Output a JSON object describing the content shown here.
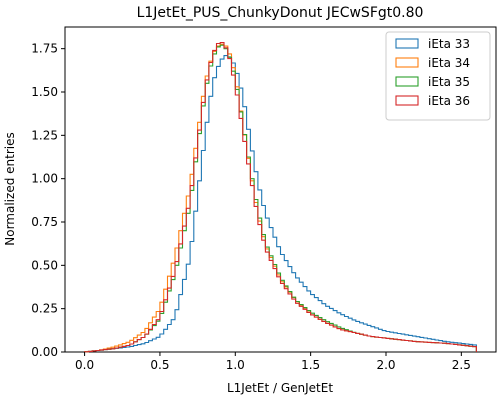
{
  "chart_data": {
    "type": "line",
    "style": "step-histogram",
    "title": "L1JetEt_PUS_ChunkyDonut JECwSFgt0.80",
    "xlabel": "L1JetEt / GenJetEt",
    "ylabel": "Normalized entries",
    "xlim": [
      -0.13,
      2.73
    ],
    "ylim": [
      0,
      1.875
    ],
    "xticks": [
      0.0,
      0.5,
      1.0,
      1.5,
      2.0,
      2.5
    ],
    "xtick_labels": [
      "0.0",
      "0.5",
      "1.0",
      "1.5",
      "2.0",
      "2.5"
    ],
    "yticks": [
      0.0,
      0.25,
      0.5,
      0.75,
      1.0,
      1.25,
      1.5,
      1.75
    ],
    "ytick_labels": [
      "0.00",
      "0.25",
      "0.50",
      "0.75",
      "1.00",
      "1.25",
      "1.50",
      "1.75"
    ],
    "grid": false,
    "legend_position": "top-right",
    "x": [
      0.0,
      0.1,
      0.2,
      0.3,
      0.4,
      0.5,
      0.6,
      0.7,
      0.75,
      0.8,
      0.85,
      0.9,
      0.95,
      1.0,
      1.05,
      1.1,
      1.15,
      1.2,
      1.3,
      1.4,
      1.5,
      1.6,
      1.7,
      1.8,
      1.9,
      2.0,
      2.2,
      2.4,
      2.6
    ],
    "series": [
      {
        "name": "iEta 33",
        "color": "#1f77b4",
        "values": [
          0.0,
          0.01,
          0.02,
          0.03,
          0.05,
          0.09,
          0.2,
          0.55,
          0.9,
          1.25,
          1.55,
          1.68,
          1.72,
          1.65,
          1.48,
          1.22,
          0.98,
          0.8,
          0.58,
          0.44,
          0.34,
          0.27,
          0.22,
          0.18,
          0.15,
          0.12,
          0.09,
          0.06,
          0.04
        ]
      },
      {
        "name": "iEta 34",
        "color": "#ff7f0e",
        "values": [
          0.0,
          0.01,
          0.03,
          0.06,
          0.12,
          0.25,
          0.55,
          0.95,
          1.25,
          1.55,
          1.72,
          1.78,
          1.76,
          1.6,
          1.32,
          1.05,
          0.8,
          0.62,
          0.42,
          0.3,
          0.22,
          0.17,
          0.13,
          0.11,
          0.09,
          0.08,
          0.06,
          0.05,
          0.03
        ]
      },
      {
        "name": "iEta 35",
        "color": "#2ca02c",
        "values": [
          0.0,
          0.01,
          0.02,
          0.04,
          0.09,
          0.19,
          0.45,
          0.85,
          1.18,
          1.5,
          1.7,
          1.78,
          1.74,
          1.58,
          1.32,
          1.06,
          0.82,
          0.63,
          0.43,
          0.3,
          0.23,
          0.18,
          0.14,
          0.11,
          0.09,
          0.08,
          0.06,
          0.05,
          0.03
        ]
      },
      {
        "name": "iEta 36",
        "color": "#d62728",
        "values": [
          0.0,
          0.01,
          0.02,
          0.04,
          0.09,
          0.2,
          0.47,
          0.88,
          1.2,
          1.52,
          1.72,
          1.8,
          1.74,
          1.55,
          1.28,
          1.02,
          0.78,
          0.6,
          0.41,
          0.29,
          0.22,
          0.17,
          0.13,
          0.11,
          0.09,
          0.08,
          0.06,
          0.05,
          0.03
        ]
      }
    ]
  }
}
